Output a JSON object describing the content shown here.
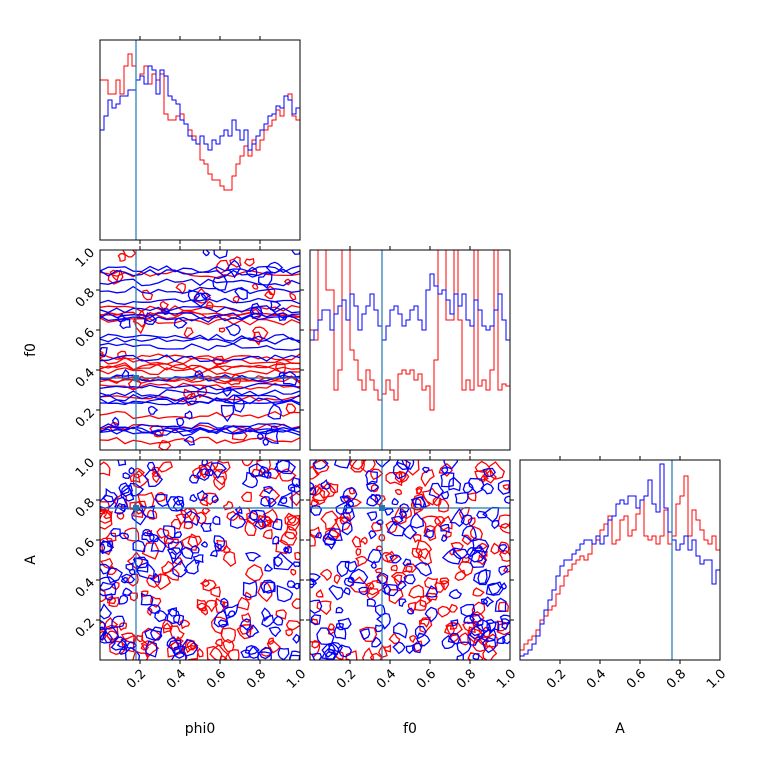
{
  "chart_data": {
    "type": "corner",
    "parameters": [
      "phi0",
      "f0",
      "A"
    ],
    "xlabels": [
      "phi0",
      "f0",
      "A"
    ],
    "ylabels": [
      "",
      "f0",
      "A"
    ],
    "axis_range": [
      0,
      1
    ],
    "ticks": [
      0.2,
      0.4,
      0.6,
      0.8
    ],
    "tick_labels_x": [
      "0.2",
      "0.4",
      "0.6",
      "0.8",
      "1.0"
    ],
    "tick_labels_y": [
      "0.2",
      "0.4",
      "0.6",
      "0.8",
      "1.0"
    ],
    "truths": {
      "phi0": 0.18,
      "f0": 0.36,
      "A": 0.76
    },
    "truth_color": "#1f77b4",
    "series": [
      {
        "color": "#ff0000",
        "hist_phi0": [
          0.8,
          0.8,
          0.73,
          0.73,
          0.8,
          0.73,
          0.87,
          0.93,
          0.87,
          0.8,
          0.83,
          0.87,
          0.78,
          0.83,
          0.8,
          0.83,
          0.63,
          0.6,
          0.6,
          0.62,
          0.63,
          0.58,
          0.55,
          0.52,
          0.48,
          0.4,
          0.38,
          0.33,
          0.3,
          0.3,
          0.27,
          0.25,
          0.25,
          0.32,
          0.38,
          0.42,
          0.47,
          0.42,
          0.5,
          0.45,
          0.5,
          0.55,
          0.57,
          0.6,
          0.65,
          0.62,
          0.72,
          0.73,
          0.62,
          0.6
        ],
        "hist_f0": [
          0.6,
          0.55,
          1.0,
          1.0,
          0.8,
          0.8,
          0.3,
          0.4,
          1.0,
          1.0,
          0.5,
          0.45,
          0.35,
          0.3,
          0.4,
          0.35,
          0.3,
          0.25,
          0.28,
          0.35,
          0.3,
          0.25,
          0.38,
          0.4,
          0.38,
          0.4,
          0.35,
          0.38,
          0.3,
          0.32,
          0.2,
          0.45,
          1.0,
          1.0,
          0.65,
          0.65,
          1.0,
          0.65,
          0.3,
          0.35,
          0.3,
          1.0,
          0.32,
          0.35,
          0.3,
          0.4,
          1.0,
          0.3,
          0.33,
          0.32
        ],
        "hist_A": [
          0.05,
          0.08,
          0.1,
          0.12,
          0.15,
          0.2,
          0.22,
          0.25,
          0.27,
          0.33,
          0.37,
          0.42,
          0.45,
          0.48,
          0.5,
          0.52,
          0.5,
          0.53,
          0.58,
          0.6,
          0.65,
          0.68,
          0.72,
          0.58,
          0.6,
          0.7,
          0.72,
          0.62,
          0.65,
          0.73,
          0.8,
          0.62,
          0.6,
          0.62,
          0.58,
          0.62,
          0.75,
          0.58,
          0.62,
          0.78,
          0.82,
          0.92,
          0.62,
          0.75,
          0.7,
          0.65,
          0.6,
          0.58,
          0.62,
          0.55
        ]
      },
      {
        "color": "#0000ff",
        "hist_phi0": [
          0.55,
          0.62,
          0.7,
          0.66,
          0.68,
          0.72,
          0.72,
          0.75,
          0.75,
          0.8,
          0.82,
          0.78,
          0.87,
          0.85,
          0.73,
          0.85,
          0.82,
          0.72,
          0.7,
          0.68,
          0.6,
          0.58,
          0.52,
          0.5,
          0.48,
          0.52,
          0.48,
          0.45,
          0.5,
          0.48,
          0.52,
          0.55,
          0.52,
          0.6,
          0.55,
          0.5,
          0.55,
          0.45,
          0.48,
          0.52,
          0.55,
          0.58,
          0.62,
          0.63,
          0.67,
          0.66,
          0.72,
          0.7,
          0.63,
          0.66
        ],
        "hist_f0": [
          0.55,
          0.6,
          0.65,
          0.7,
          0.7,
          0.6,
          0.68,
          0.72,
          0.75,
          0.65,
          0.78,
          0.72,
          0.6,
          0.68,
          0.72,
          0.78,
          0.7,
          0.62,
          0.55,
          0.62,
          0.7,
          0.72,
          0.68,
          0.62,
          0.65,
          0.7,
          0.72,
          0.65,
          0.6,
          0.8,
          0.88,
          0.82,
          0.78,
          0.8,
          0.75,
          0.68,
          0.78,
          0.72,
          0.78,
          0.65,
          0.62,
          0.75,
          0.7,
          0.62,
          0.6,
          0.62,
          0.7,
          0.78,
          0.65,
          0.55
        ],
        "hist_A": [
          0.02,
          0.03,
          0.05,
          0.08,
          0.12,
          0.18,
          0.25,
          0.3,
          0.35,
          0.42,
          0.47,
          0.5,
          0.5,
          0.53,
          0.55,
          0.58,
          0.6,
          0.6,
          0.58,
          0.62,
          0.58,
          0.62,
          0.7,
          0.72,
          0.78,
          0.8,
          0.78,
          0.82,
          0.82,
          0.76,
          0.8,
          0.82,
          0.9,
          0.78,
          0.74,
          0.98,
          0.76,
          0.64,
          0.6,
          0.55,
          0.58,
          0.62,
          0.55,
          0.6,
          0.52,
          0.48,
          0.5,
          0.5,
          0.38,
          0.45
        ]
      }
    ]
  }
}
